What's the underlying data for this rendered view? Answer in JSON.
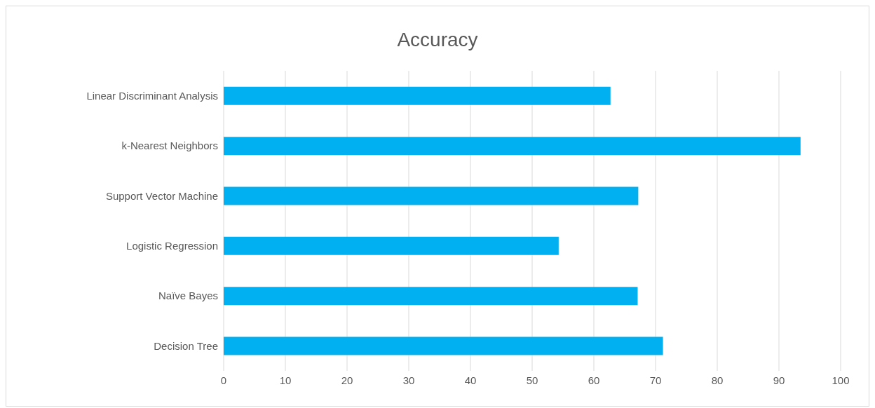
{
  "chart_data": {
    "type": "bar",
    "orientation": "horizontal",
    "title": "Accuracy",
    "categories": [
      "Linear Discriminant Analysis",
      "k-Nearest Neighbors",
      "Support Vector Machine",
      "Logistic Regression",
      "Naïve Bayes",
      "Decision Tree"
    ],
    "values": [
      62.7,
      93.5,
      67.2,
      54.3,
      67.1,
      71.2
    ],
    "color": "#00b0f0",
    "xlim": [
      0,
      100
    ],
    "xticks": [
      0,
      10,
      20,
      30,
      40,
      50,
      60,
      70,
      80,
      90,
      100
    ],
    "grid": "x",
    "legend": false
  }
}
